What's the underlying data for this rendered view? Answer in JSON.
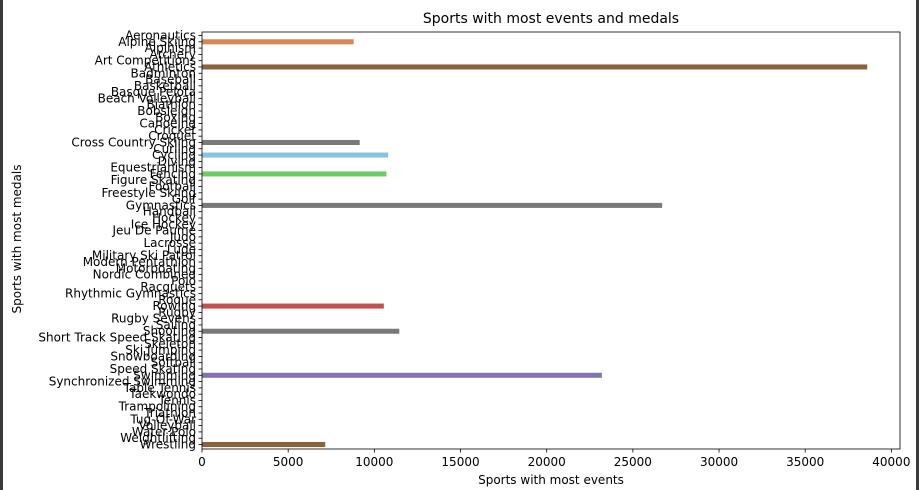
{
  "chart_data": {
    "type": "bar",
    "orientation": "horizontal",
    "title": "Sports with most events and medals",
    "xlabel": "Sports with most events",
    "ylabel": "Sports with most medals",
    "xlim": [
      0,
      40500
    ],
    "xticks": [
      0,
      5000,
      10000,
      15000,
      20000,
      25000,
      30000,
      35000,
      40000
    ],
    "grid": false,
    "categories": [
      "Aeronautics",
      "Alpine Skiing",
      "Alpinism",
      "Archery",
      "Art Competitions",
      "Athletics",
      "Badminton",
      "Baseball",
      "Basketball",
      "Basque Pelota",
      "Beach Volleyball",
      "Biathlon",
      "Bobsleigh",
      "Boxing",
      "Canoeing",
      "Cricket",
      "Croquet",
      "Cross Country Skiing",
      "Curling",
      "Cycling",
      "Diving",
      "Equestrianism",
      "Fencing",
      "Figure Skating",
      "Football",
      "Freestyle Skiing",
      "Golf",
      "Gymnastics",
      "Handball",
      "Hockey",
      "Ice Hockey",
      "Jeu De Paume",
      "Judo",
      "Lacrosse",
      "Luge",
      "Military Ski Patrol",
      "Modern Pentathlon",
      "Motorboating",
      "Nordic Combined",
      "Polo",
      "Racquets",
      "Rhythmic Gymnastics",
      "Roque",
      "Rowing",
      "Rugby",
      "Rugby Sevens",
      "Sailing",
      "Shooting",
      "Short Track Speed Skating",
      "Skeleton",
      "Ski Jumping",
      "Snowboarding",
      "Softball",
      "Speed Skating",
      "Swimming",
      "Synchronized Swimming",
      "Table Tennis",
      "Taekwondo",
      "Tennis",
      "Trampolining",
      "Triathlon",
      "Tug-Of-War",
      "Volleyball",
      "Water Polo",
      "Weightlifting",
      "Wrestling"
    ],
    "values": [
      0,
      8800,
      0,
      0,
      0,
      38600,
      0,
      0,
      0,
      0,
      0,
      0,
      0,
      0,
      0,
      0,
      0,
      9150,
      0,
      10800,
      0,
      0,
      10700,
      0,
      0,
      0,
      0,
      26700,
      0,
      0,
      0,
      0,
      0,
      0,
      0,
      0,
      0,
      0,
      0,
      0,
      0,
      0,
      0,
      10550,
      0,
      0,
      0,
      11450,
      0,
      0,
      0,
      0,
      0,
      0,
      23200,
      0,
      0,
      0,
      0,
      0,
      0,
      0,
      0,
      0,
      0,
      7150
    ],
    "colors": {
      "Alpine Skiing": "#dd8452",
      "Athletics": "#8c613c",
      "Cross Country Skiing": "#797979",
      "Cycling": "#82c6e2",
      "Fencing": "#6acc64",
      "Gymnastics": "#797979",
      "Rowing": "#c44e52",
      "Shooting": "#797979",
      "Swimming": "#8172b3",
      "Wrestling": "#8c613c"
    }
  }
}
